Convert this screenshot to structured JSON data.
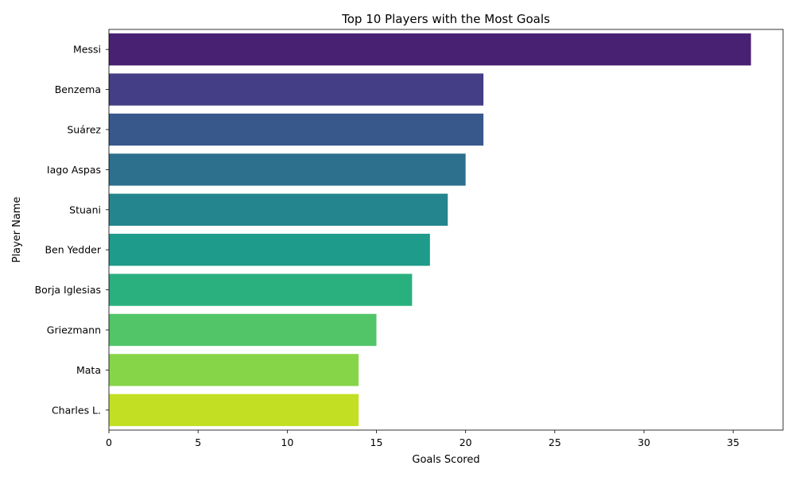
{
  "chart_data": {
    "type": "bar",
    "orientation": "horizontal",
    "title": "Top 10 Players with the Most Goals",
    "xlabel": "Goals Scored",
    "ylabel": "Player Name",
    "categories": [
      "Messi",
      "Benzema",
      "Suárez",
      "Iago Aspas",
      "Stuani",
      "Ben Yedder",
      "Borja Iglesias",
      "Griezmann",
      "Mata",
      "Charles L."
    ],
    "values": [
      36,
      21,
      21,
      20,
      19,
      18,
      17,
      15,
      14,
      14
    ],
    "xlim": [
      0,
      37.8
    ],
    "xticks": [
      0,
      5,
      10,
      15,
      20,
      25,
      30,
      35
    ],
    "grid": false,
    "legend": "none",
    "colors": [
      "#482173",
      "#433e85",
      "#38588c",
      "#2d708e",
      "#25858e",
      "#1e9b8a",
      "#2ab07f",
      "#52c569",
      "#86d549",
      "#c2df23"
    ]
  }
}
